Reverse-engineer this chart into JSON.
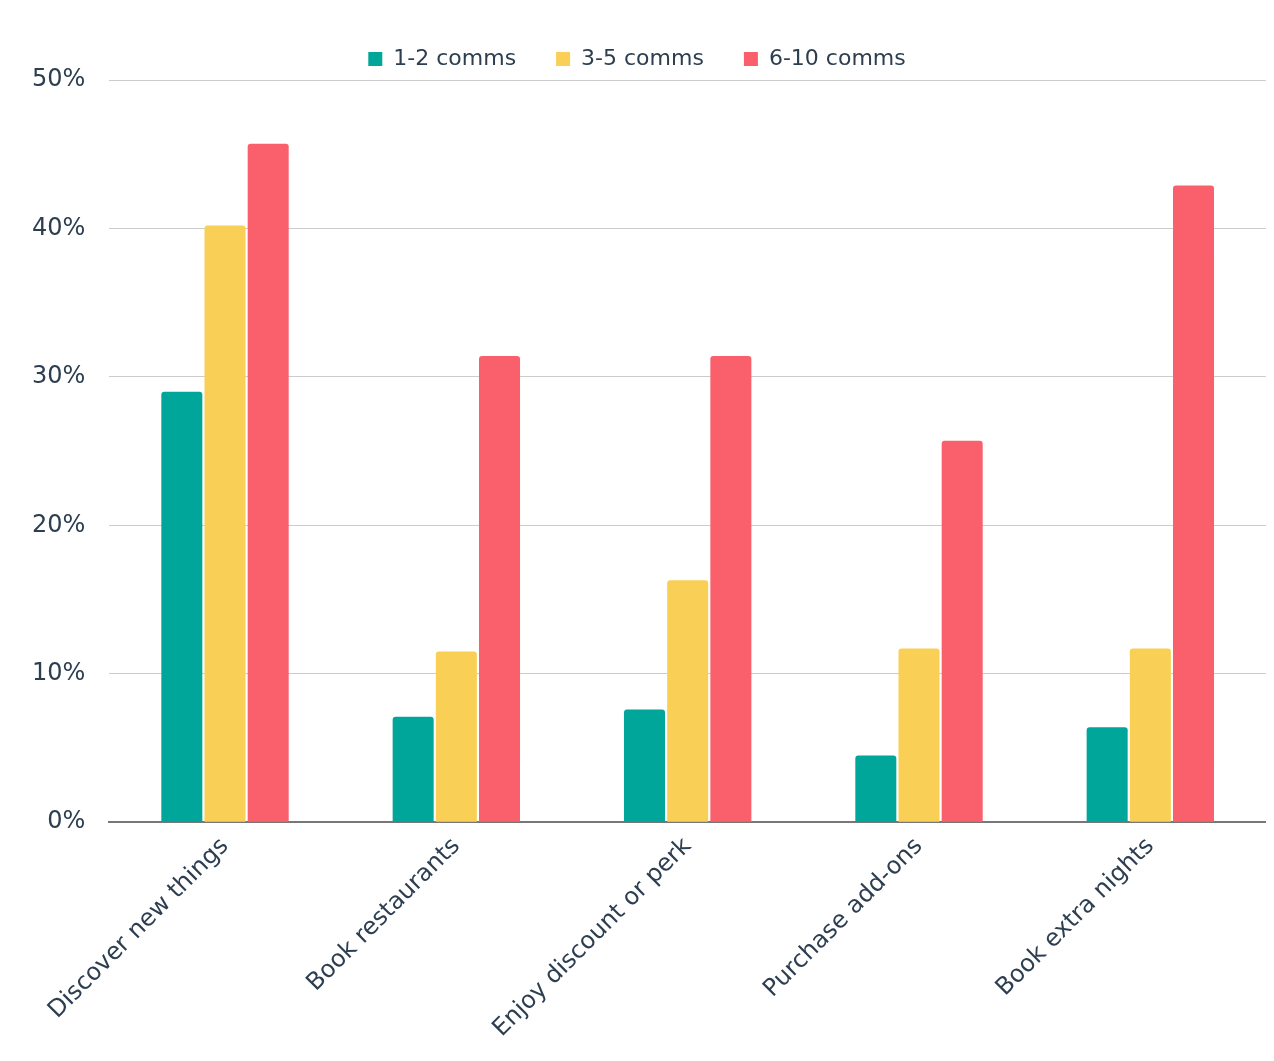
{
  "chart_data": {
    "type": "bar",
    "categories": [
      "Discover new things",
      "Book restaurants",
      "Enjoy discount or perk",
      "Purchase add-ons",
      "Book extra nights"
    ],
    "series": [
      {
        "name": "1-2 comms",
        "color": "#00a699",
        "values": [
          29.0,
          7.1,
          7.6,
          4.5,
          6.4
        ]
      },
      {
        "name": "3-5 comms",
        "color": "#f9cf56",
        "values": [
          40.2,
          11.5,
          16.3,
          11.7,
          11.7
        ]
      },
      {
        "name": "6-10 comms",
        "color": "#f9606c",
        "values": [
          45.7,
          31.4,
          31.4,
          25.7,
          42.9
        ]
      }
    ],
    "ylim": [
      0,
      50
    ],
    "yticks": [
      {
        "value": 0,
        "label": "0%"
      },
      {
        "value": 10,
        "label": "10%"
      },
      {
        "value": 20,
        "label": "20%"
      },
      {
        "value": 30,
        "label": "30%"
      },
      {
        "value": 40,
        "label": "40%"
      },
      {
        "value": 50,
        "label": "50%"
      }
    ],
    "grid": "y",
    "legend": "top"
  }
}
